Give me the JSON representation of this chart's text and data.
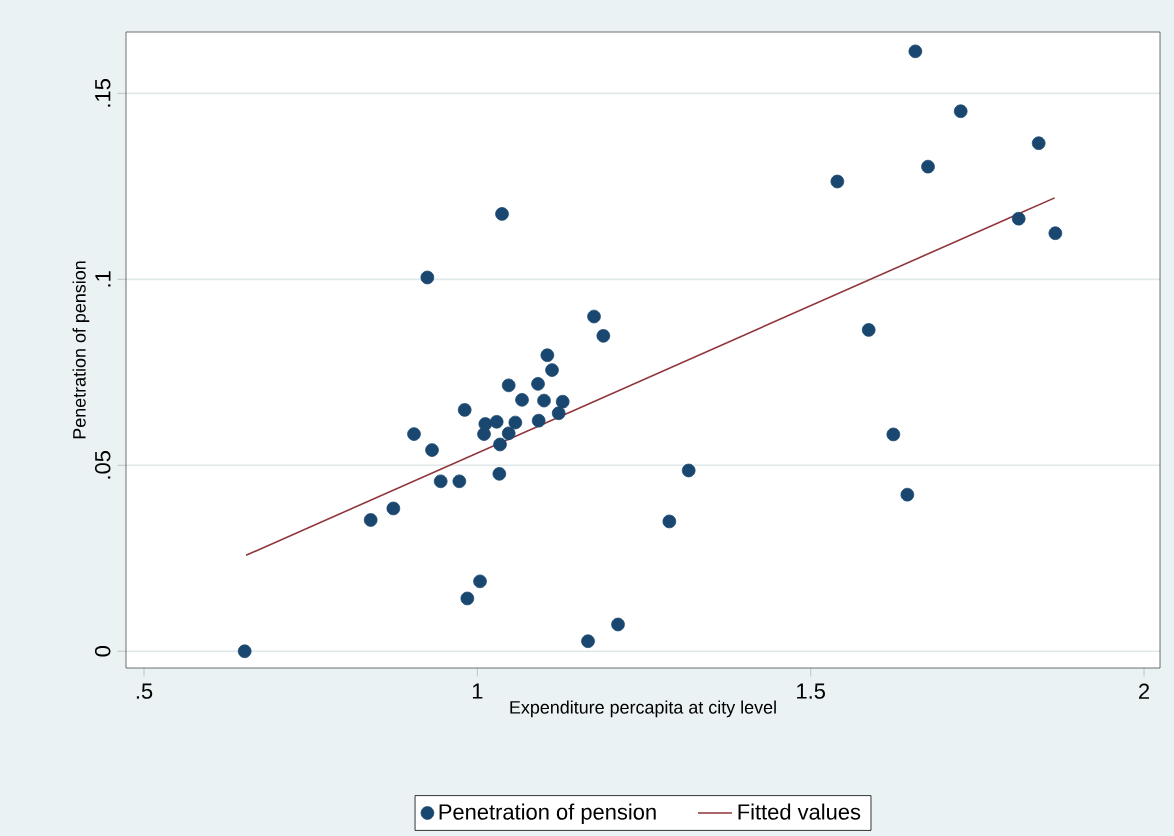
{
  "chart_data": {
    "type": "scatter",
    "xlabel": "Expenditure percapita at city level",
    "ylabel": "Penetration of pension",
    "xlim": [
      0.473,
      2.024
    ],
    "ylim": [
      -0.0045,
      0.1665
    ],
    "xticks": [
      {
        "value": 0.5,
        "label": ".5"
      },
      1,
      1.5,
      2
    ],
    "yticks": [
      0,
      {
        "value": 0.05,
        "label": ".05"
      },
      {
        "value": 0.1,
        "label": ".1"
      },
      {
        "value": 0.15,
        "label": ".15"
      }
    ],
    "grid": "y",
    "legend": "bottom",
    "marker": "circle",
    "series": [
      {
        "name": "Penetration of pension",
        "color": "#1a476f",
        "x": [
          0.651,
          1.037,
          0.925,
          1.175,
          1.189,
          1.105,
          1.112,
          1.047,
          1.091,
          1.067,
          1.1,
          1.128,
          0.981,
          1.012,
          1.029,
          1.057,
          1.092,
          1.122,
          1.01,
          1.047,
          0.905,
          0.932,
          1.034,
          1.033,
          0.945,
          0.973,
          0.874,
          0.84,
          1.004,
          0.985,
          1.166,
          1.211,
          1.657,
          1.725,
          1.842,
          1.676,
          1.54,
          1.812,
          1.867,
          1.587,
          1.624,
          1.645,
          1.317,
          1.288
        ],
        "values": [
          0.0,
          0.1176,
          0.1005,
          0.09,
          0.0848,
          0.0796,
          0.0756,
          0.0715,
          0.0719,
          0.0676,
          0.0674,
          0.0671,
          0.0649,
          0.0611,
          0.0617,
          0.0615,
          0.062,
          0.064,
          0.0584,
          0.0586,
          0.0584,
          0.0541,
          0.0556,
          0.0477,
          0.0457,
          0.0457,
          0.0384,
          0.0353,
          0.0188,
          0.0142,
          0.0027,
          0.0072,
          0.1613,
          0.1452,
          0.1366,
          0.1303,
          0.1263,
          0.1163,
          0.1124,
          0.0864,
          0.0583,
          0.0421,
          0.0486,
          0.0349
        ]
      },
      {
        "name": "Fitted values",
        "color": "#90353b",
        "type": "line",
        "line_style": "solid",
        "marker": "none",
        "x": [
          0.653,
          1.866
        ],
        "values": [
          0.0258,
          0.1219
        ]
      }
    ]
  }
}
